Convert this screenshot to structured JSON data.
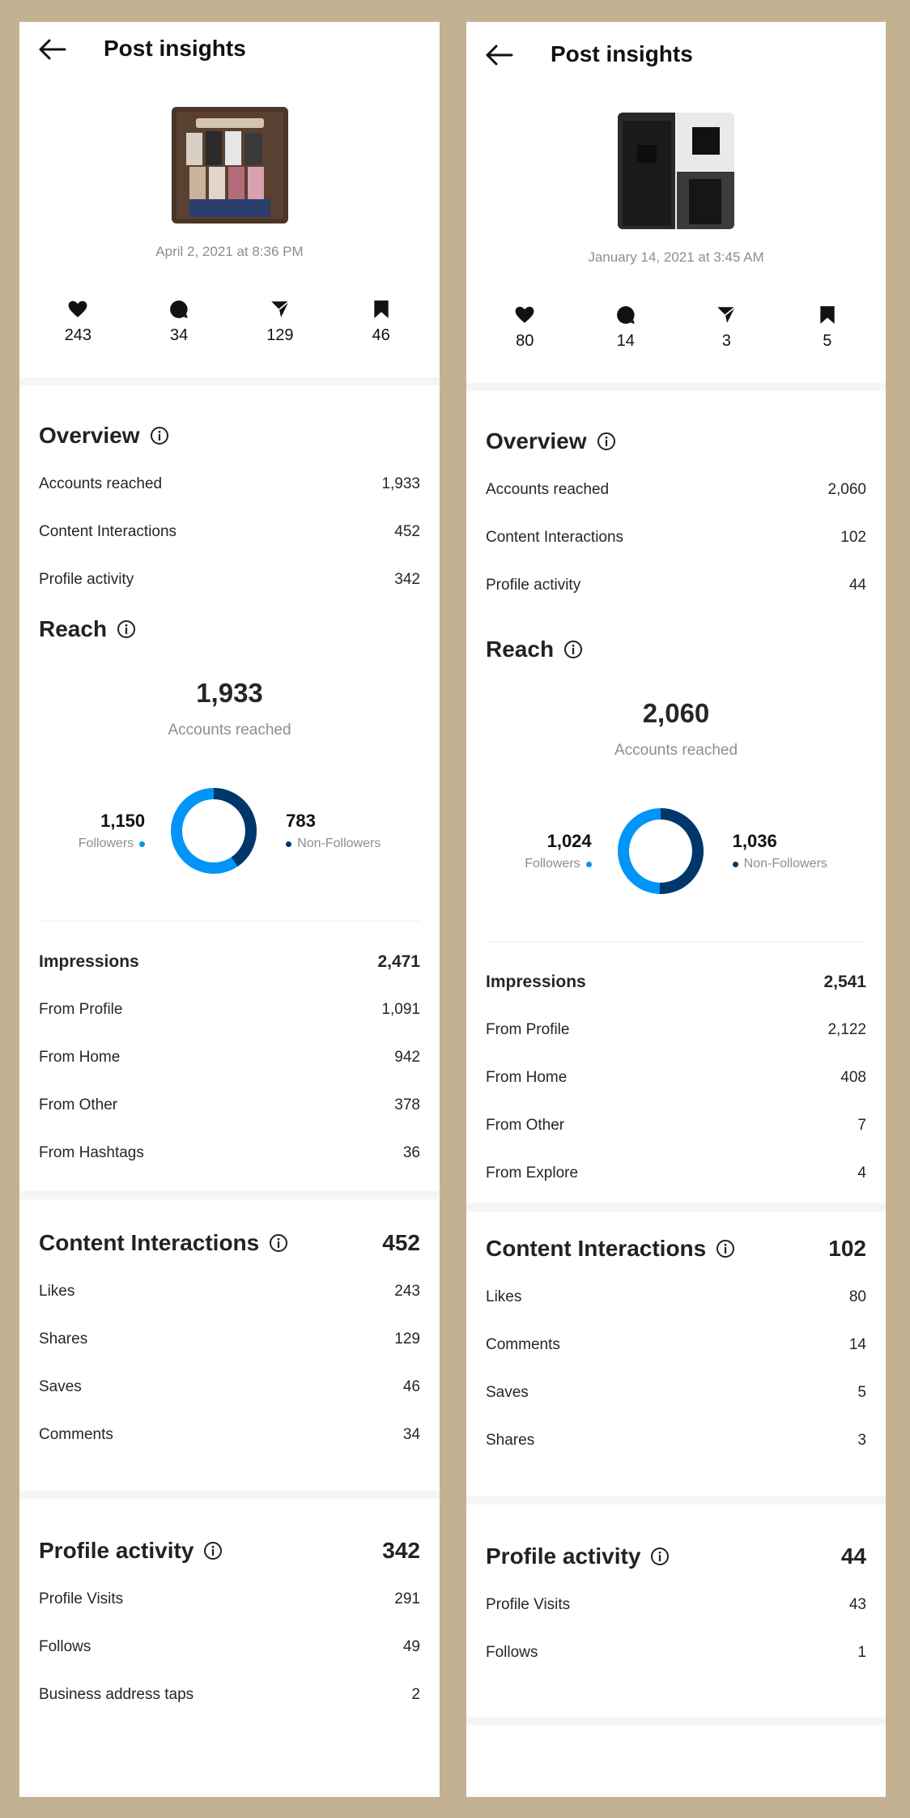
{
  "colors": {
    "followers": "#0095f6",
    "non_followers": "#00376b"
  },
  "left": {
    "header": {
      "title": "Post insights"
    },
    "post_date": "April 2, 2021 at 8:36 PM",
    "stats": {
      "likes": "243",
      "comments": "34",
      "shares": "129",
      "saves": "46"
    },
    "overview": {
      "title": "Overview",
      "rows": [
        {
          "label": "Accounts reached",
          "value": "1,933"
        },
        {
          "label": "Content Interactions",
          "value": "452"
        },
        {
          "label": "Profile activity",
          "value": "342"
        }
      ]
    },
    "reach": {
      "title": "Reach",
      "total": "1,933",
      "sub": "Accounts reached",
      "followers": {
        "value": "1,150",
        "label": "Followers"
      },
      "non_followers": {
        "value": "783",
        "label": "Non-Followers"
      },
      "followers_share": 0.595
    },
    "impressions": {
      "label": "Impressions",
      "value": "2,471",
      "rows": [
        {
          "label": "From Profile",
          "value": "1,091"
        },
        {
          "label": "From Home",
          "value": "942"
        },
        {
          "label": "From Other",
          "value": "378"
        },
        {
          "label": "From Hashtags",
          "value": "36"
        }
      ]
    },
    "interactions": {
      "title": "Content Interactions",
      "total": "452",
      "rows": [
        {
          "label": "Likes",
          "value": "243"
        },
        {
          "label": "Shares",
          "value": "129"
        },
        {
          "label": "Saves",
          "value": "46"
        },
        {
          "label": "Comments",
          "value": "34"
        }
      ]
    },
    "profile": {
      "title": "Profile activity",
      "total": "342",
      "rows": [
        {
          "label": "Profile Visits",
          "value": "291"
        },
        {
          "label": "Follows",
          "value": "49"
        },
        {
          "label": "Business address taps",
          "value": "2"
        }
      ]
    }
  },
  "right": {
    "header": {
      "title": "Post insights"
    },
    "post_date": "January 14, 2021 at 3:45 AM",
    "stats": {
      "likes": "80",
      "comments": "14",
      "shares": "3",
      "saves": "5"
    },
    "overview": {
      "title": "Overview",
      "rows": [
        {
          "label": "Accounts reached",
          "value": "2,060"
        },
        {
          "label": "Content Interactions",
          "value": "102"
        },
        {
          "label": "Profile activity",
          "value": "44"
        }
      ]
    },
    "reach": {
      "title": "Reach",
      "total": "2,060",
      "sub": "Accounts reached",
      "followers": {
        "value": "1,024",
        "label": "Followers"
      },
      "non_followers": {
        "value": "1,036",
        "label": "Non-Followers"
      },
      "followers_share": 0.497
    },
    "impressions": {
      "label": "Impressions",
      "value": "2,541",
      "rows": [
        {
          "label": "From Profile",
          "value": "2,122"
        },
        {
          "label": "From Home",
          "value": "408"
        },
        {
          "label": "From Other",
          "value": "7"
        },
        {
          "label": "From Explore",
          "value": "4"
        }
      ]
    },
    "interactions": {
      "title": "Content Interactions",
      "total": "102",
      "rows": [
        {
          "label": "Likes",
          "value": "80"
        },
        {
          "label": "Comments",
          "value": "14"
        },
        {
          "label": "Saves",
          "value": "5"
        },
        {
          "label": "Shares",
          "value": "3"
        }
      ]
    },
    "profile": {
      "title": "Profile activity",
      "total": "44",
      "rows": [
        {
          "label": "Profile Visits",
          "value": "43"
        },
        {
          "label": "Follows",
          "value": "1"
        }
      ]
    }
  }
}
